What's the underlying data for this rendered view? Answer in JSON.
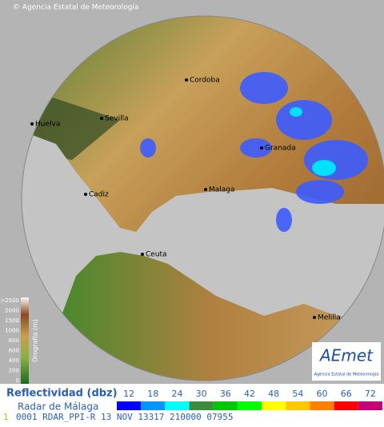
{
  "header": {
    "credit": "© Agencia Estatal de Meteorología"
  },
  "cities": [
    {
      "label": "Cordoba"
    },
    {
      "label": "Sevilla"
    },
    {
      "label": "Huelva"
    },
    {
      "label": "Granada"
    },
    {
      "label": "Malaga"
    },
    {
      "label": "Cadiz"
    },
    {
      "label": "Ceuta"
    },
    {
      "label": "Melilla"
    }
  ],
  "elevation_legend": {
    "title": "Orografía (m)",
    "labels": [
      ">2500",
      "2000",
      "1500",
      "1000",
      "800",
      "600",
      "400",
      "200",
      "0"
    ]
  },
  "logo": {
    "name": "AEmet",
    "subtitle": "Agencia Estatal de Meteorología"
  },
  "reflectivity": {
    "title": "Reflectividad (dbz)",
    "radar": "Radar de Málaga",
    "levels": [
      {
        "value": 12,
        "color": "#0000fe"
      },
      {
        "value": 18,
        "color": "#0096fe"
      },
      {
        "value": 24,
        "color": "#00fefe"
      },
      {
        "value": 30,
        "color": "#3c8c3c"
      },
      {
        "value": 36,
        "color": "#00c800"
      },
      {
        "value": 42,
        "color": "#00fe00"
      },
      {
        "value": 48,
        "color": "#fefe00"
      },
      {
        "value": 54,
        "color": "#fec800"
      },
      {
        "value": 60,
        "color": "#fe8000"
      },
      {
        "value": 66,
        "color": "#fe0000"
      },
      {
        "value": 72,
        "color": "#c80078"
      }
    ]
  },
  "status_line": {
    "index": "1",
    "text": "0001 RDAR_PPI-R 13 NOV 13317 210000 07955"
  }
}
